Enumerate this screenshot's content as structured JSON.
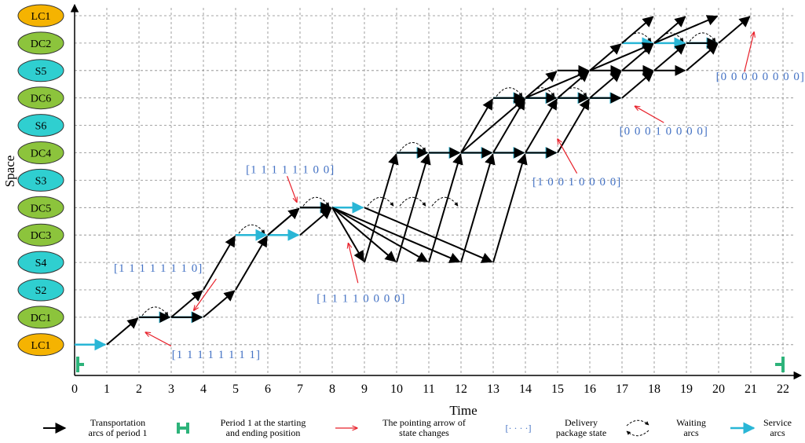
{
  "axes": {
    "x_title": "Time",
    "y_title": "Space",
    "time_ticks": [
      "0",
      "1",
      "2",
      "3",
      "4",
      "5",
      "6",
      "7",
      "8",
      "9",
      "10",
      "11",
      "12",
      "13",
      "14",
      "15",
      "16",
      "17",
      "18",
      "19",
      "20",
      "21",
      "22"
    ]
  },
  "nodes": [
    {
      "label": "LC1",
      "color": "#f5b301"
    },
    {
      "label": "DC2",
      "color": "#8cc43c"
    },
    {
      "label": "S5",
      "color": "#2fcfd0"
    },
    {
      "label": "DC6",
      "color": "#8cc43c"
    },
    {
      "label": "S6",
      "color": "#2fcfd0"
    },
    {
      "label": "DC4",
      "color": "#8cc43c"
    },
    {
      "label": "S3",
      "color": "#2fcfd0"
    },
    {
      "label": "DC5",
      "color": "#8cc43c"
    },
    {
      "label": "DC3",
      "color": "#8cc43c"
    },
    {
      "label": "S4",
      "color": "#2fcfd0"
    },
    {
      "label": "S2",
      "color": "#2fcfd0"
    },
    {
      "label": "DC1",
      "color": "#8cc43c"
    },
    {
      "label": "LC1",
      "color": "#f5b301"
    }
  ],
  "colors": {
    "transport": "#000000",
    "service": "#29b6d6",
    "pointer": "#e8202a",
    "state_text": "#4472c4",
    "period_marker": "#2db37a"
  },
  "transport_arcs": [
    [
      1,
      12,
      2,
      11
    ],
    [
      2,
      11,
      3,
      11
    ],
    [
      3,
      11,
      4,
      10
    ],
    [
      4,
      10,
      5,
      8
    ],
    [
      3,
      11,
      4,
      11
    ],
    [
      4,
      11,
      5,
      10
    ],
    [
      5,
      10,
      6,
      8
    ],
    [
      6,
      8,
      7,
      7
    ],
    [
      7,
      7,
      8,
      7
    ],
    [
      8,
      7,
      9,
      9
    ],
    [
      9,
      9,
      10,
      5
    ],
    [
      10,
      5,
      11,
      5
    ],
    [
      11,
      5,
      12,
      5
    ],
    [
      12,
      5,
      13,
      3
    ],
    [
      13,
      3,
      14,
      3
    ],
    [
      14,
      3,
      15,
      2
    ],
    [
      15,
      2,
      16,
      2
    ],
    [
      16,
      2,
      17,
      1
    ],
    [
      17,
      1,
      18,
      0
    ],
    [
      6,
      8,
      7,
      7
    ],
    [
      7,
      7,
      8,
      7
    ],
    [
      8,
      7,
      10,
      9
    ],
    [
      10,
      9,
      11,
      5
    ],
    [
      11,
      5,
      12,
      5
    ],
    [
      12,
      5,
      13,
      5
    ],
    [
      13,
      5,
      14,
      3
    ],
    [
      14,
      3,
      15,
      3
    ],
    [
      15,
      3,
      16,
      2
    ],
    [
      16,
      2,
      17,
      2
    ],
    [
      17,
      2,
      18,
      1
    ],
    [
      18,
      1,
      19,
      0
    ],
    [
      7,
      8,
      8,
      7
    ],
    [
      8,
      7,
      11,
      9
    ],
    [
      11,
      9,
      12,
      5
    ],
    [
      12,
      5,
      14,
      3
    ],
    [
      14,
      3,
      16,
      2
    ],
    [
      16,
      2,
      18,
      1
    ],
    [
      18,
      1,
      20,
      0
    ],
    [
      8,
      7,
      12,
      9
    ],
    [
      12,
      9,
      13,
      5
    ],
    [
      13,
      5,
      14,
      5
    ],
    [
      14,
      5,
      15,
      3
    ],
    [
      15,
      3,
      16,
      3
    ],
    [
      16,
      3,
      17,
      2
    ],
    [
      17,
      2,
      18,
      2
    ],
    [
      18,
      2,
      19,
      1
    ],
    [
      19,
      1,
      20,
      1
    ],
    [
      20,
      1,
      21,
      0
    ],
    [
      9,
      7,
      13,
      9
    ],
    [
      13,
      9,
      14,
      5
    ],
    [
      14,
      5,
      15,
      5
    ],
    [
      15,
      5,
      16,
      3
    ],
    [
      16,
      3,
      17,
      3
    ],
    [
      17,
      3,
      18,
      2
    ],
    [
      18,
      2,
      19,
      2
    ],
    [
      19,
      2,
      20,
      1
    ]
  ],
  "service_arcs": [
    [
      0,
      12,
      1,
      12
    ],
    [
      2,
      11,
      3,
      11
    ],
    [
      3,
      11,
      4,
      11
    ],
    [
      5,
      8,
      6,
      8
    ],
    [
      6,
      8,
      7,
      8
    ],
    [
      7,
      7,
      8,
      7
    ],
    [
      8,
      7,
      9,
      7
    ],
    [
      10,
      5,
      11,
      5
    ],
    [
      11,
      5,
      12,
      5
    ],
    [
      12,
      5,
      13,
      5
    ],
    [
      13,
      5,
      14,
      5
    ],
    [
      14,
      5,
      15,
      5
    ],
    [
      13,
      3,
      14,
      3
    ],
    [
      14,
      3,
      15,
      3
    ],
    [
      15,
      3,
      16,
      3
    ],
    [
      16,
      3,
      17,
      3
    ],
    [
      17,
      1,
      18,
      1
    ],
    [
      18,
      1,
      19,
      1
    ],
    [
      19,
      1,
      20,
      1
    ]
  ],
  "waiting_arcs": [
    [
      2,
      11,
      3,
      11
    ],
    [
      5,
      8,
      6,
      8
    ],
    [
      7,
      7,
      8,
      7
    ],
    [
      9,
      7,
      10,
      7
    ],
    [
      10,
      7,
      11,
      7
    ],
    [
      11,
      7,
      12,
      7
    ],
    [
      10,
      5,
      11,
      5
    ],
    [
      13,
      3,
      14,
      3
    ],
    [
      14,
      3,
      15,
      3
    ],
    [
      15,
      3,
      16,
      3
    ],
    [
      17,
      1,
      18,
      1
    ],
    [
      18,
      1,
      19,
      1
    ],
    [
      19,
      1,
      20,
      1
    ]
  ],
  "state_labels": [
    {
      "text": "[1 1 1 1 1 1 1 1]",
      "t": 4.4,
      "s": 12.35
    },
    {
      "text": "[1 1 1 1 1 1 1 0]",
      "t": 2.6,
      "s": 9.2
    },
    {
      "text": "[1 1 1 1 1 1 0 0]",
      "t": 6.7,
      "s": 5.6
    },
    {
      "text": "[1 1 1 1 0 0 0 0]",
      "t": 8.9,
      "s": 10.3
    },
    {
      "text": "[1 0 0 1 0 0 0 0]",
      "t": 15.6,
      "s": 6.05
    },
    {
      "text": "[0 0 0 1 0 0 0 0]",
      "t": 18.3,
      "s": 4.2
    },
    {
      "text": "[0 0 0 0 0 0 0 0]",
      "t": 21.3,
      "s": 2.2
    }
  ],
  "pointer_arrows": [
    [
      3.0,
      12.05,
      2.2,
      11.55
    ],
    [
      4.4,
      9.6,
      3.7,
      10.75
    ],
    [
      6.6,
      5.85,
      6.9,
      6.8
    ],
    [
      8.8,
      9.75,
      8.5,
      8.3
    ],
    [
      15.6,
      5.75,
      15.0,
      4.5
    ],
    [
      18.3,
      3.9,
      17.4,
      3.3
    ],
    [
      20.8,
      2.05,
      21.1,
      0.6
    ]
  ],
  "legend": [
    {
      "type": "transport",
      "text_line1": "Transportation",
      "text_line2": "arcs of period 1"
    },
    {
      "type": "period",
      "text_line1": "Period 1 at the starting",
      "text_line2": "and ending position"
    },
    {
      "type": "pointer",
      "text_line1": "The pointing arrow of",
      "text_line2": "state changes"
    },
    {
      "type": "delivery",
      "symbol": "[· · · ·]",
      "text_line1": "Delivery",
      "text_line2": "package state"
    },
    {
      "type": "waiting",
      "text_line1": "Waiting",
      "text_line2": "arcs"
    },
    {
      "type": "service",
      "text_line1": "Service",
      "text_line2": "arcs"
    }
  ]
}
